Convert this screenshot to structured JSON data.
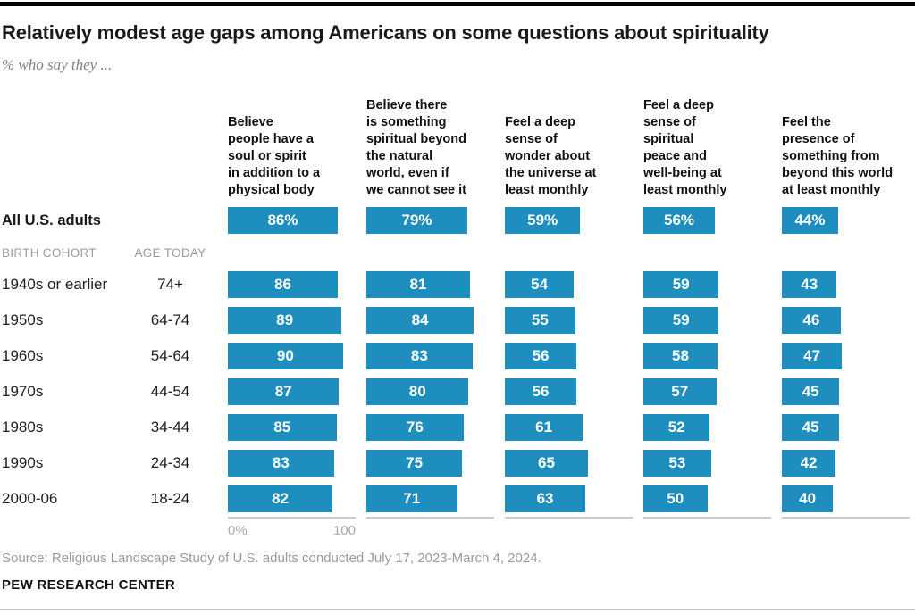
{
  "title": "Relatively modest age gaps among Americans on some questions about spirituality",
  "subtitle": "% who say they ...",
  "colors": {
    "bar": "#1d8ebd",
    "axis": "#cacaca"
  },
  "columns": [
    "Believe\npeople have a\nsoul or spirit\nin addition to a\nphysical body",
    "Believe there\nis something\nspiritual beyond\nthe natural\nworld, even if\nwe cannot see it",
    "Feel a deep\nsense of\nwonder about\nthe universe at\nleast monthly",
    "Feel a deep\nsense of\nspiritual\npeace and\nwell-being at\nleast monthly",
    "Feel the\npresence of\nsomething from\nbeyond this world\nat least monthly"
  ],
  "all_adults": {
    "label": "All U.S. adults",
    "values": [
      86,
      79,
      59,
      56,
      44
    ],
    "labels": [
      "86%",
      "79%",
      "59%",
      "56%",
      "44%"
    ]
  },
  "cohort_header": {
    "birth": "BIRTH COHORT",
    "age": "AGE TODAY"
  },
  "rows": [
    {
      "cohort": "1940s or earlier",
      "age": "74+",
      "values": [
        86,
        81,
        54,
        59,
        43
      ]
    },
    {
      "cohort": "1950s",
      "age": "64-74",
      "values": [
        89,
        84,
        55,
        59,
        46
      ]
    },
    {
      "cohort": "1960s",
      "age": "54-64",
      "values": [
        90,
        83,
        56,
        58,
        47
      ]
    },
    {
      "cohort": "1970s",
      "age": "44-54",
      "values": [
        87,
        80,
        56,
        57,
        45
      ]
    },
    {
      "cohort": "1980s",
      "age": "34-44",
      "values": [
        85,
        76,
        61,
        52,
        45
      ]
    },
    {
      "cohort": "1990s",
      "age": "24-34",
      "values": [
        83,
        75,
        65,
        53,
        42
      ]
    },
    {
      "cohort": "2000-06",
      "age": "18-24",
      "values": [
        82,
        71,
        63,
        50,
        40
      ]
    }
  ],
  "axis": {
    "min_label": "0%",
    "max_label": "100"
  },
  "source": "Source: Religious Landscape Study of U.S. adults conducted July 17, 2023-March 4, 2024.",
  "brand": "PEW RESEARCH CENTER",
  "chart_data": {
    "type": "bar",
    "orientation": "horizontal",
    "title": "Relatively modest age gaps among Americans on some questions about spirituality",
    "subtitle": "% who say they ...",
    "xlim": [
      0,
      100
    ],
    "grid": false,
    "legend_position": "column-headers",
    "categories": [
      "All U.S. adults",
      "1940s or earlier (74+)",
      "1950s (64-74)",
      "1960s (54-64)",
      "1970s (44-54)",
      "1980s (34-44)",
      "1990s (24-34)",
      "2000-06 (18-24)"
    ],
    "series": [
      {
        "name": "Believe people have a soul or spirit in addition to a physical body",
        "values": [
          86,
          86,
          89,
          90,
          87,
          85,
          83,
          82
        ]
      },
      {
        "name": "Believe there is something spiritual beyond the natural world, even if we cannot see it",
        "values": [
          79,
          81,
          84,
          83,
          80,
          76,
          75,
          71
        ]
      },
      {
        "name": "Feel a deep sense of wonder about the universe at least monthly",
        "values": [
          59,
          54,
          55,
          56,
          56,
          61,
          65,
          63
        ]
      },
      {
        "name": "Feel a deep sense of spiritual peace and well-being at least monthly",
        "values": [
          56,
          59,
          59,
          58,
          57,
          52,
          53,
          50
        ]
      },
      {
        "name": "Feel the presence of something from beyond this world at least monthly",
        "values": [
          44,
          43,
          46,
          47,
          45,
          45,
          42,
          40
        ]
      }
    ]
  }
}
